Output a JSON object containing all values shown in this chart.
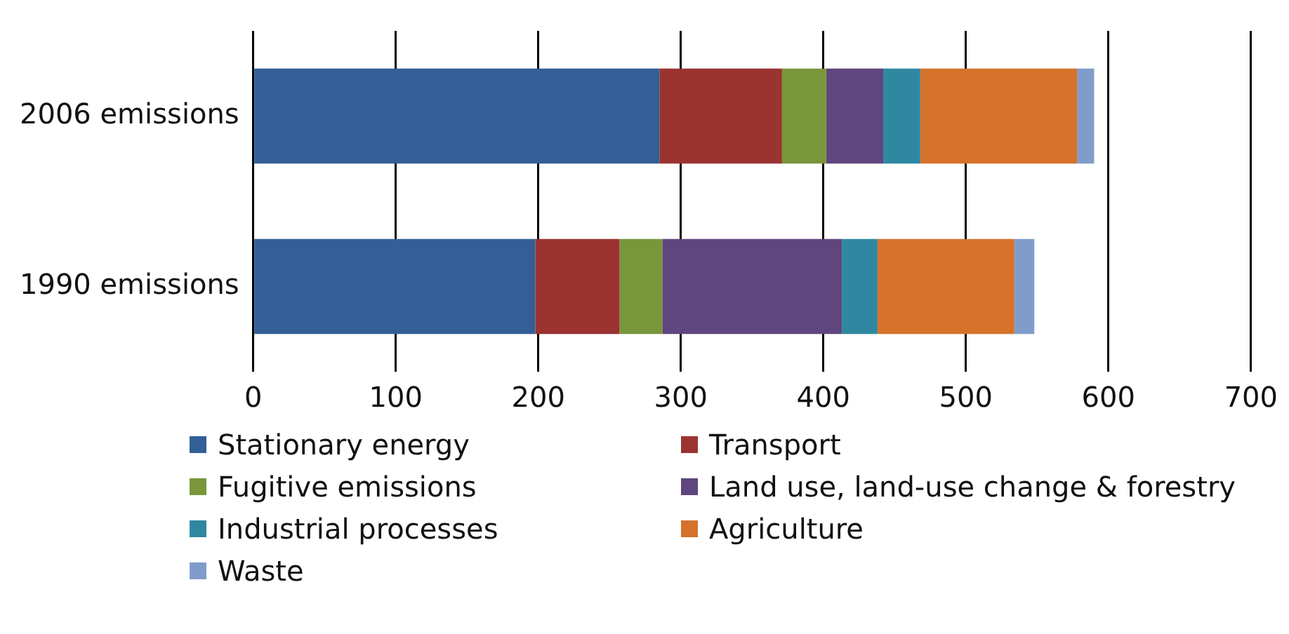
{
  "chart_data": {
    "type": "bar",
    "orientation": "horizontal",
    "stacked": true,
    "categories": [
      "2006 emissions",
      "1990 emissions"
    ],
    "series": [
      {
        "name": "Stationary energy",
        "color": "#335f96",
        "values": [
          285,
          198
        ]
      },
      {
        "name": "Transport",
        "color": "#9b3331",
        "values": [
          86,
          59
        ]
      },
      {
        "name": "Fugitive emissions",
        "color": "#79963b",
        "values": [
          31,
          30
        ]
      },
      {
        "name": "Land use, land-use change & forestry",
        "color": "#5f467e",
        "values": [
          40,
          126
        ]
      },
      {
        "name": "Industrial processes",
        "color": "#2f88a0",
        "values": [
          26,
          25
        ]
      },
      {
        "name": "Agriculture",
        "color": "#d5722b",
        "values": [
          110,
          96
        ]
      },
      {
        "name": "Waste",
        "color": "#809cca",
        "values": [
          12,
          14
        ]
      }
    ],
    "xlim": [
      0,
      700
    ],
    "xticks": [
      0,
      100,
      200,
      300,
      400,
      500,
      600,
      700
    ],
    "grid": "x",
    "legend": "bottom"
  }
}
